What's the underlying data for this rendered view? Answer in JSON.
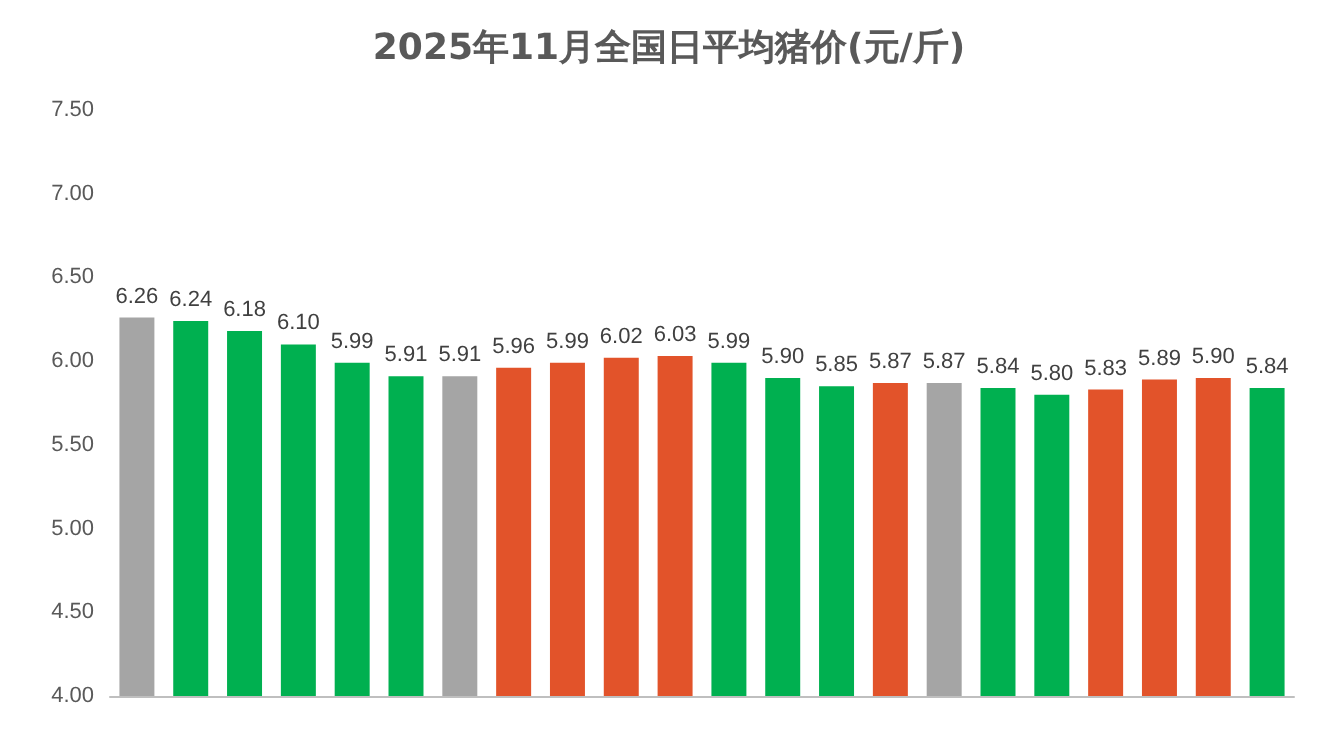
{
  "chart_data": {
    "type": "bar",
    "title": "2025年11月全国日平均猪价(元/斤)",
    "categories": [
      null,
      null,
      null,
      null,
      null,
      null,
      null,
      null,
      null,
      null,
      null,
      null,
      null,
      null,
      null,
      null,
      null,
      null,
      null,
      null,
      null,
      null
    ],
    "values": [
      6.26,
      6.24,
      6.18,
      6.1,
      5.99,
      5.91,
      5.91,
      5.96,
      5.99,
      6.02,
      6.03,
      5.99,
      5.9,
      5.85,
      5.87,
      5.87,
      5.84,
      5.8,
      5.83,
      5.89,
      5.9,
      5.84
    ],
    "value_labels": [
      "6.26",
      "6.24",
      "6.18",
      "6.10",
      "5.99",
      "5.91",
      "5.91",
      "5.96",
      "5.99",
      "6.02",
      "6.03",
      "5.99",
      "5.90",
      "5.85",
      "5.87",
      "5.87",
      "5.84",
      "5.80",
      "5.83",
      "5.89",
      "5.90",
      "5.84"
    ],
    "colors": [
      "#a5a5a5",
      "#00b050",
      "#00b050",
      "#00b050",
      "#00b050",
      "#00b050",
      "#a5a5a5",
      "#e2532a",
      "#e2532a",
      "#e2532a",
      "#e2532a",
      "#00b050",
      "#00b050",
      "#00b050",
      "#e2532a",
      "#a5a5a5",
      "#00b050",
      "#00b050",
      "#e2532a",
      "#e2532a",
      "#e2532a",
      "#00b050"
    ],
    "ylim": [
      4,
      7.5
    ],
    "yticks": [
      {
        "value": 4,
        "label": "4.00"
      },
      {
        "value": 4.5,
        "label": "4.50"
      },
      {
        "value": 5,
        "label": "5.00"
      },
      {
        "value": 5.5,
        "label": "5.50"
      },
      {
        "value": 6,
        "label": "6.00"
      },
      {
        "value": 6.5,
        "label": "6.50"
      },
      {
        "value": 7,
        "label": "7.00"
      },
      {
        "value": 7.5,
        "label": "7.50"
      }
    ],
    "grid": false
  }
}
